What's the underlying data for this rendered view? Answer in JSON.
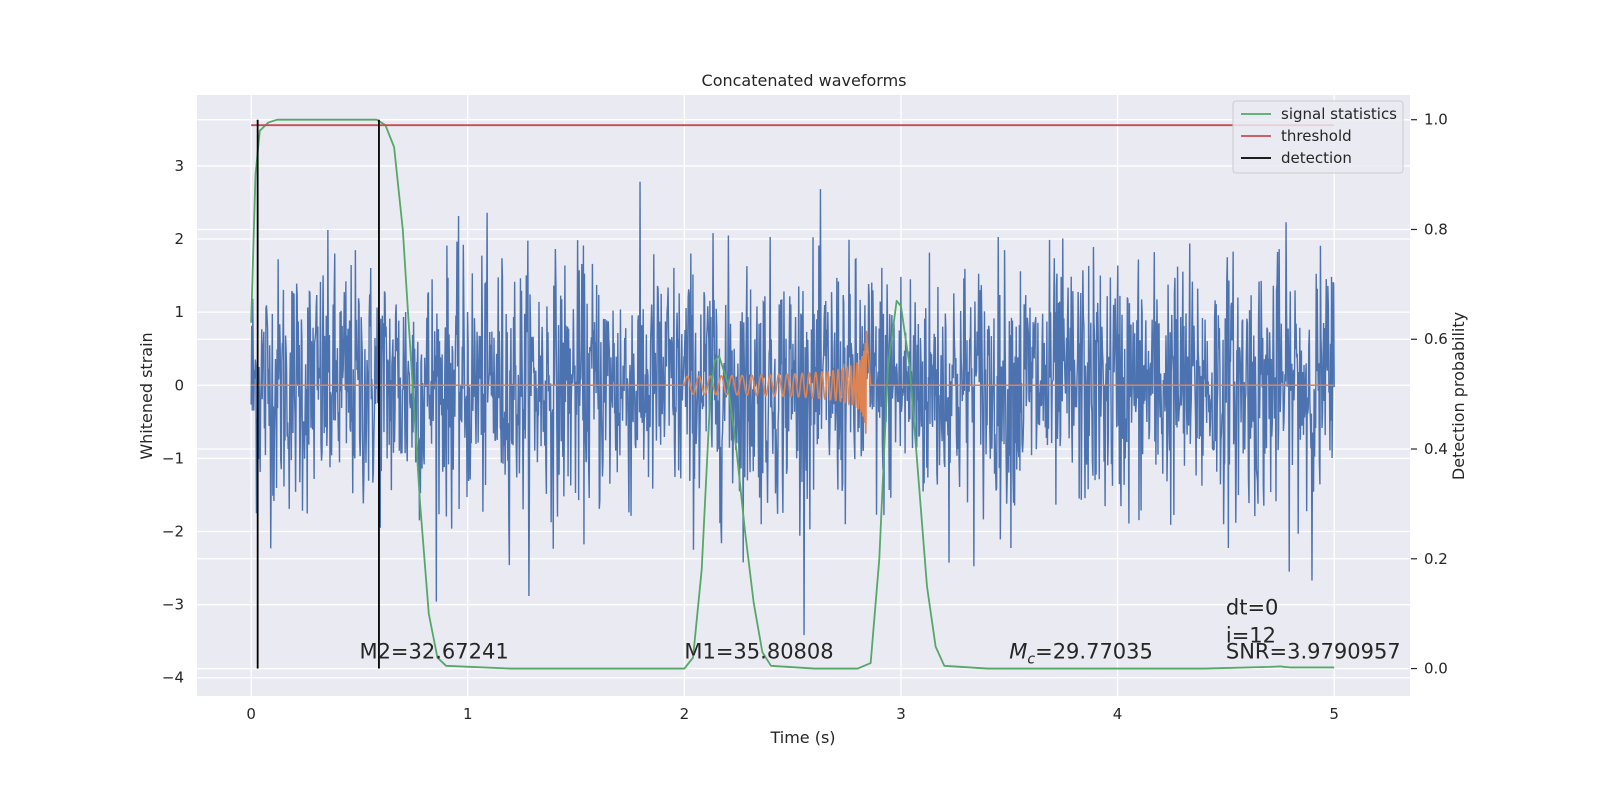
{
  "chart_data": {
    "type": "line",
    "title": "Concatenated waveforms",
    "xlabel": "Time (s)",
    "ylabel": "Whitened strain",
    "y2label": "Detection probability",
    "xlim": [
      -0.25,
      5.35
    ],
    "ylim": [
      -4.25,
      3.97
    ],
    "y2lim": [
      -0.05,
      1.045
    ],
    "grid": true,
    "legend_position": "top-right",
    "x_ticks": [
      "0",
      "1",
      "2",
      "3",
      "4",
      "5"
    ],
    "y_ticks": [
      "−4",
      "−3",
      "−2",
      "−1",
      "0",
      "1",
      "2",
      "3"
    ],
    "y2_ticks": [
      "0.0",
      "0.2",
      "0.4",
      "0.6",
      "0.8",
      "1.0"
    ],
    "colors": {
      "strain": "#4c72b0",
      "template": "#dd8452",
      "signal_statistics": "#55a868",
      "threshold": "#c44e52",
      "detection": "#000000",
      "background": "#eaeaf2",
      "grid": "#ffffff"
    },
    "legend": [
      {
        "name": "signal statistics",
        "color": "#55a868"
      },
      {
        "name": "threshold",
        "color": "#c44e52"
      },
      {
        "name": "detection",
        "color": "#000000"
      }
    ],
    "threshold": 0.99,
    "detections": [
      0.03,
      0.59
    ],
    "strain_noise": {
      "x_range": [
        0.0,
        5.0
      ],
      "amplitude_std": 0.85,
      "peak_abs": 3.6,
      "samples": 2048
    },
    "template_chirp": {
      "start": 2.0,
      "merger": 2.84,
      "end": 2.86,
      "peak_amplitude": 0.8
    },
    "signal_statistics": {
      "x": [
        0.0,
        0.02,
        0.04,
        0.08,
        0.12,
        0.2,
        0.4,
        0.58,
        0.62,
        0.66,
        0.7,
        0.74,
        0.78,
        0.82,
        0.86,
        0.9,
        1.2,
        1.6,
        2.0,
        2.04,
        2.08,
        2.12,
        2.14,
        2.16,
        2.2,
        2.24,
        2.28,
        2.32,
        2.36,
        2.4,
        2.6,
        2.8,
        2.86,
        2.9,
        2.94,
        2.98,
        3.0,
        3.04,
        3.08,
        3.12,
        3.16,
        3.2,
        3.4,
        3.6,
        4.0,
        4.4,
        4.7,
        4.75,
        4.8,
        5.0
      ],
      "y": [
        0.63,
        0.9,
        0.98,
        0.995,
        1.0,
        1.0,
        1.0,
        1.0,
        0.99,
        0.95,
        0.8,
        0.55,
        0.3,
        0.1,
        0.02,
        0.005,
        0.0,
        0.0,
        0.0,
        0.02,
        0.18,
        0.5,
        0.56,
        0.57,
        0.52,
        0.4,
        0.25,
        0.12,
        0.03,
        0.005,
        0.0,
        0.0,
        0.01,
        0.2,
        0.55,
        0.67,
        0.66,
        0.55,
        0.35,
        0.15,
        0.04,
        0.005,
        0.0,
        0.0,
        0.0,
        0.0,
        0.003,
        0.004,
        0.002,
        0.002
      ]
    },
    "annotations": [
      {
        "id": "m2",
        "text": "M2=32.67241",
        "x": 0.5,
        "y_frac": -0.03
      },
      {
        "id": "m1",
        "text": "M1=35.80808",
        "x": 2.0,
        "y_frac": -0.03
      },
      {
        "id": "mc",
        "text": "=29.77035",
        "symbol": "M",
        "subscript": "c",
        "x": 3.5,
        "y_frac": -0.03
      },
      {
        "id": "dt",
        "text": "dt=0",
        "x": 4.5,
        "y_frac": 0.05
      },
      {
        "id": "i",
        "text": "i=12",
        "x": 4.5,
        "y_frac": 0.005
      },
      {
        "id": "snr",
        "text": "SNR=3.9790957",
        "x": 4.5,
        "y_frac": -0.03
      }
    ]
  }
}
